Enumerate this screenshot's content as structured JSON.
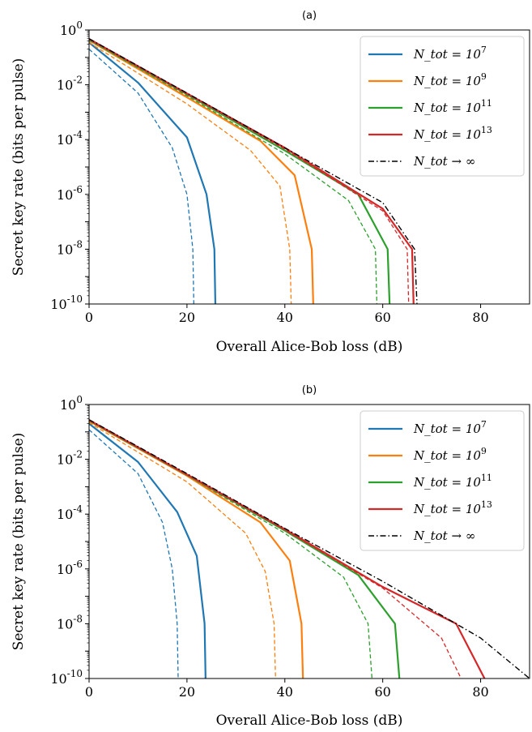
{
  "chart_data": [
    {
      "type": "line",
      "title": "(a)",
      "xlabel": "Overall Alice-Bob loss (dB)",
      "ylabel": "Secret key rate (bits per pulse)",
      "xlim": [
        0,
        90
      ],
      "ylim": [
        1e-10,
        1
      ],
      "yscale": "log",
      "xticks": [
        "0",
        "20",
        "40",
        "60",
        "80"
      ],
      "yticks": [
        "10^0",
        "10^-2",
        "10^-4",
        "10^-6",
        "10^-8",
        "10^-10"
      ],
      "legend_position": "top-right",
      "series": [
        {
          "name": "N_tot = 10^7",
          "color": "#1f77b4",
          "style": "solid",
          "x": [
            0,
            10,
            20,
            24,
            25.6,
            25.8
          ],
          "y": [
            0.35,
            0.012,
            0.00012,
            1e-06,
            1e-08,
            1e-10
          ]
        },
        {
          "name": "N_tot = 10^7",
          "color": "#1f77b4",
          "style": "dashed",
          "x": [
            0,
            10,
            17,
            20,
            21.2,
            21.4
          ],
          "y": [
            0.2,
            0.005,
            5e-05,
            1e-06,
            1e-08,
            1e-10
          ]
        },
        {
          "name": "N_tot = 10^9",
          "color": "#ff7f0e",
          "style": "solid",
          "x": [
            0,
            20,
            35,
            42,
            45.5,
            45.8
          ],
          "y": [
            0.42,
            0.0035,
            9e-05,
            5e-06,
            1e-08,
            1e-10
          ]
        },
        {
          "name": "N_tot = 10^9",
          "color": "#ff7f0e",
          "style": "dashed",
          "x": [
            0,
            20,
            33,
            39,
            41,
            41.3
          ],
          "y": [
            0.35,
            0.002,
            4e-05,
            2e-06,
            1e-08,
            1e-10
          ]
        },
        {
          "name": "N_tot = 10^11",
          "color": "#2ca02c",
          "style": "solid",
          "x": [
            0,
            20,
            40,
            55,
            61,
            61.4
          ],
          "y": [
            0.45,
            0.0045,
            4e-05,
            1e-06,
            1e-08,
            1e-10
          ]
        },
        {
          "name": "N_tot = 10^11",
          "color": "#2ca02c",
          "style": "dashed",
          "x": [
            0,
            20,
            40,
            53,
            58.5,
            58.8
          ],
          "y": [
            0.42,
            0.004,
            3e-05,
            6e-07,
            1e-08,
            1e-10
          ]
        },
        {
          "name": "N_tot = 10^13",
          "color": "#d62728",
          "style": "solid",
          "x": [
            0,
            20,
            40,
            60,
            66,
            66.3
          ],
          "y": [
            0.47,
            0.0048,
            5e-05,
            3e-07,
            1e-08,
            1e-10
          ]
        },
        {
          "name": "N_tot = 10^13",
          "color": "#d62728",
          "style": "dashed",
          "x": [
            0,
            20,
            40,
            60,
            65,
            65.3
          ],
          "y": [
            0.46,
            0.0046,
            4.5e-05,
            2.5e-07,
            1e-08,
            1e-10
          ]
        },
        {
          "name": "N_tot → ∞",
          "color": "#000000",
          "style": "dashdot",
          "x": [
            0,
            20,
            40,
            60,
            66.5,
            67
          ],
          "y": [
            0.48,
            0.005,
            5e-05,
            5e-07,
            1e-08,
            1e-10
          ]
        }
      ]
    },
    {
      "type": "line",
      "title": "(b)",
      "xlabel": "Overall Alice-Bob loss (dB)",
      "ylabel": "Secret key rate (bits per pulse)",
      "xlim": [
        0,
        90
      ],
      "ylim": [
        1e-10,
        1
      ],
      "yscale": "log",
      "xticks": [
        "0",
        "20",
        "40",
        "60",
        "80"
      ],
      "yticks": [
        "10^0",
        "10^-2",
        "10^-4",
        "10^-6",
        "10^-8",
        "10^-10"
      ],
      "legend_position": "top-right",
      "series": [
        {
          "name": "N_tot = 10^7",
          "color": "#1f77b4",
          "style": "solid",
          "x": [
            0,
            10,
            18,
            22,
            23.6,
            23.8
          ],
          "y": [
            0.2,
            0.008,
            0.00012,
            3e-06,
            1e-08,
            1e-10
          ]
        },
        {
          "name": "N_tot = 10^7",
          "color": "#1f77b4",
          "style": "dashed",
          "x": [
            0,
            10,
            15,
            17,
            18,
            18.2
          ],
          "y": [
            0.12,
            0.003,
            5e-05,
            1e-06,
            1e-08,
            1e-10
          ]
        },
        {
          "name": "N_tot = 10^9",
          "color": "#ff7f0e",
          "style": "solid",
          "x": [
            0,
            20,
            35,
            41,
            43.4,
            43.7
          ],
          "y": [
            0.25,
            0.0025,
            5e-05,
            2e-06,
            1e-08,
            1e-10
          ]
        },
        {
          "name": "N_tot = 10^9",
          "color": "#ff7f0e",
          "style": "dashed",
          "x": [
            0,
            20,
            32,
            36,
            37.8,
            38.1
          ],
          "y": [
            0.22,
            0.0015,
            2e-05,
            8e-07,
            1e-08,
            1e-10
          ]
        },
        {
          "name": "N_tot = 10^11",
          "color": "#2ca02c",
          "style": "solid",
          "x": [
            0,
            20,
            40,
            55,
            62.5,
            63.4
          ],
          "y": [
            0.26,
            0.0027,
            2.5e-05,
            6e-07,
            1e-08,
            1e-10
          ]
        },
        {
          "name": "N_tot = 10^11",
          "color": "#2ca02c",
          "style": "dashed",
          "x": [
            0,
            20,
            40,
            52,
            57,
            57.8
          ],
          "y": [
            0.25,
            0.0026,
            2e-05,
            5e-07,
            1e-08,
            1e-10
          ]
        },
        {
          "name": "N_tot = 10^13",
          "color": "#d62728",
          "style": "solid",
          "x": [
            0,
            20,
            40,
            60,
            75,
            80.8
          ],
          "y": [
            0.27,
            0.0028,
            2.8e-05,
            2.2e-07,
            1e-08,
            1e-10
          ]
        },
        {
          "name": "N_tot = 10^13",
          "color": "#d62728",
          "style": "dashed",
          "x": [
            0,
            20,
            40,
            60,
            72,
            76
          ],
          "y": [
            0.26,
            0.0027,
            2.6e-05,
            2e-07,
            3e-09,
            1e-10
          ]
        },
        {
          "name": "N_tot → ∞",
          "color": "#000000",
          "style": "dashdot",
          "x": [
            0,
            20,
            40,
            60,
            80,
            90
          ],
          "y": [
            0.28,
            0.003,
            3e-05,
            3.5e-07,
            3e-09,
            1e-10
          ]
        }
      ]
    }
  ]
}
